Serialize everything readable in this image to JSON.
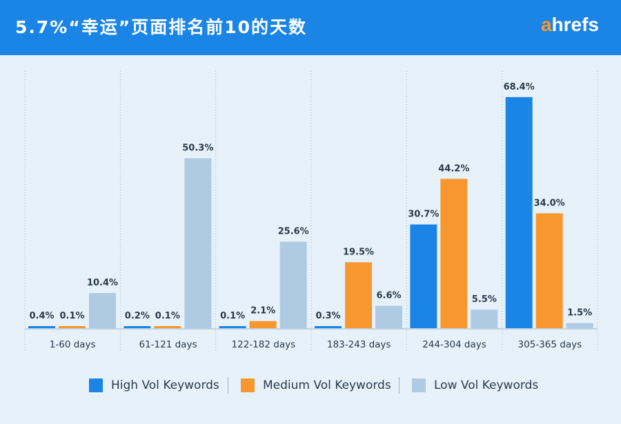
{
  "header": {
    "title": "5.7%“幸运”页面排名前10的天数",
    "brand_a": "a",
    "brand_rest": "hrefs"
  },
  "colors": {
    "header_bg": "#1a85e6",
    "high": "#1a85e6",
    "medium": "#f7972e",
    "low": "#afcbe3"
  },
  "legend": {
    "position": "bottom",
    "items": [
      {
        "label": "High Vol Keywords",
        "color": "#1a85e6"
      },
      {
        "label": "Medium Vol Keywords",
        "color": "#f7972e"
      },
      {
        "label": "Low Vol Keywords",
        "color": "#afcbe3"
      }
    ]
  },
  "chart_data": {
    "type": "bar",
    "title": "5.7%“幸运”页面排名前10的天数",
    "xlabel": "",
    "ylabel": "",
    "ylim": [
      0,
      70
    ],
    "grid": false,
    "categories": [
      "1-60 days",
      "61-121 days",
      "122-182 days",
      "183-243 days",
      "244-304 days",
      "305-365 days"
    ],
    "series": [
      {
        "name": "High Vol Keywords",
        "values": [
          0.4,
          0.2,
          0.1,
          0.3,
          30.7,
          68.4
        ],
        "labels": [
          "0.4%",
          "0.2%",
          "0.1%",
          "0.3%",
          "30.7%",
          "68.4%"
        ]
      },
      {
        "name": "Medium Vol Keywords",
        "values": [
          0.1,
          0.1,
          2.1,
          19.5,
          44.2,
          34.0
        ],
        "labels": [
          "0.1%",
          "0.1%",
          "2.1%",
          "19.5%",
          "44.2%",
          "34.0%"
        ]
      },
      {
        "name": "Low Vol Keywords",
        "values": [
          10.4,
          50.3,
          25.6,
          6.6,
          5.5,
          1.5
        ],
        "labels": [
          "10.4%",
          "50.3%",
          "25.6%",
          "6.6%",
          "5.5%",
          "1.5%"
        ]
      }
    ]
  }
}
